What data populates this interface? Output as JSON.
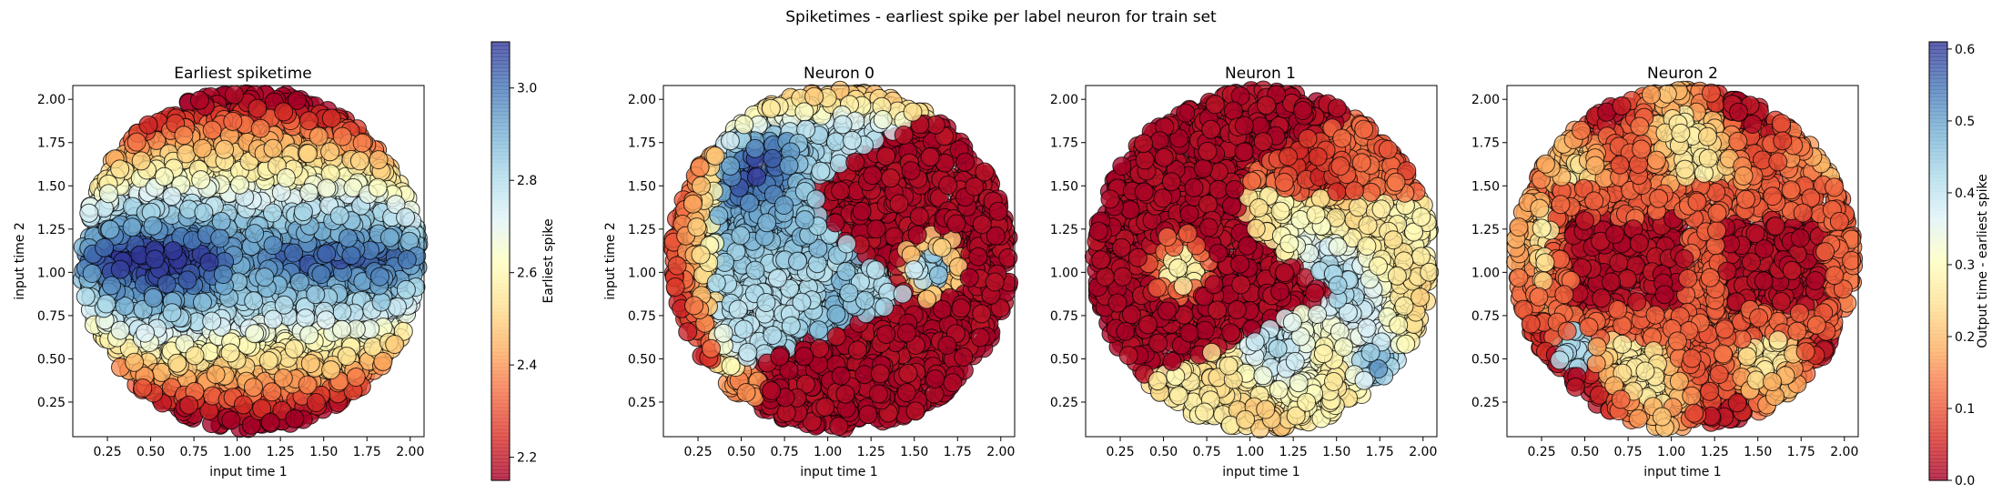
{
  "figure": {
    "title": "Spiketimes - earliest spike per label neuron for train set"
  },
  "chart_data": [
    {
      "type": "scatter",
      "title": "Earliest spiketime",
      "xlabel": "input time 1",
      "ylabel": "input time 2",
      "xlim": [
        0.05,
        2.08
      ],
      "ylim": [
        0.05,
        2.08
      ],
      "xticks": [
        "0.25",
        "0.50",
        "0.75",
        "1.00",
        "1.25",
        "1.50",
        "1.75",
        "2.00"
      ],
      "yticks": [
        "0.25",
        "0.50",
        "0.75",
        "1.00",
        "1.25",
        "1.50",
        "1.75",
        "2.00"
      ],
      "domain_center": [
        1.075,
        1.075
      ],
      "domain_radius": 0.98,
      "pattern": "earliest",
      "colorbar": {
        "label": "Earliest spike",
        "min": 2.15,
        "max": 3.1,
        "ticks": [
          "2.2",
          "2.4",
          "2.6",
          "2.8",
          "3.0"
        ],
        "tick_values": [
          2.2,
          2.4,
          2.6,
          2.8,
          3.0
        ]
      }
    },
    {
      "type": "scatter",
      "title": "Neuron 0",
      "xlabel": "input time 1",
      "ylabel": "input time 2",
      "xlim": [
        0.05,
        2.08
      ],
      "ylim": [
        0.05,
        2.08
      ],
      "xticks": [
        "0.25",
        "0.50",
        "0.75",
        "1.00",
        "1.25",
        "1.50",
        "1.75",
        "2.00"
      ],
      "yticks": [
        "0.25",
        "0.50",
        "0.75",
        "1.00",
        "1.25",
        "1.50",
        "1.75",
        "2.00"
      ],
      "domain_center": [
        1.075,
        1.075
      ],
      "domain_radius": 0.98,
      "pattern": "yin"
    },
    {
      "type": "scatter",
      "title": "Neuron 1",
      "xlabel": "input time 1",
      "ylabel": "",
      "xlim": [
        0.05,
        2.08
      ],
      "ylim": [
        0.05,
        2.08
      ],
      "xticks": [
        "0.25",
        "0.50",
        "0.75",
        "1.00",
        "1.25",
        "1.50",
        "1.75",
        "2.00"
      ],
      "yticks": [
        "0.25",
        "0.50",
        "0.75",
        "1.00",
        "1.25",
        "1.50",
        "1.75",
        "2.00"
      ],
      "domain_center": [
        1.075,
        1.075
      ],
      "domain_radius": 0.98,
      "pattern": "yang"
    },
    {
      "type": "scatter",
      "title": "Neuron 2",
      "xlabel": "input time 1",
      "ylabel": "",
      "xlim": [
        0.05,
        2.08
      ],
      "ylim": [
        0.05,
        2.08
      ],
      "xticks": [
        "0.25",
        "0.50",
        "0.75",
        "1.00",
        "1.25",
        "1.50",
        "1.75",
        "2.00"
      ],
      "yticks": [
        "0.25",
        "0.50",
        "0.75",
        "1.00",
        "1.25",
        "1.50",
        "1.75",
        "2.00"
      ],
      "domain_center": [
        1.075,
        1.075
      ],
      "domain_radius": 0.98,
      "pattern": "dots",
      "colorbar": {
        "label": "Output time - earliest spike",
        "min": 0.0,
        "max": 0.61,
        "ticks": [
          "0.0",
          "0.1",
          "0.2",
          "0.3",
          "0.4",
          "0.5",
          "0.6"
        ],
        "tick_values": [
          0.0,
          0.1,
          0.2,
          0.3,
          0.4,
          0.5,
          0.6
        ]
      }
    }
  ],
  "colormap": {
    "name": "RdYlBu",
    "stops": [
      "#a50026",
      "#d73027",
      "#f46d43",
      "#fdae61",
      "#fee090",
      "#ffffbf",
      "#e0f3f8",
      "#abd9e9",
      "#74add1",
      "#4575b4",
      "#313695"
    ]
  }
}
